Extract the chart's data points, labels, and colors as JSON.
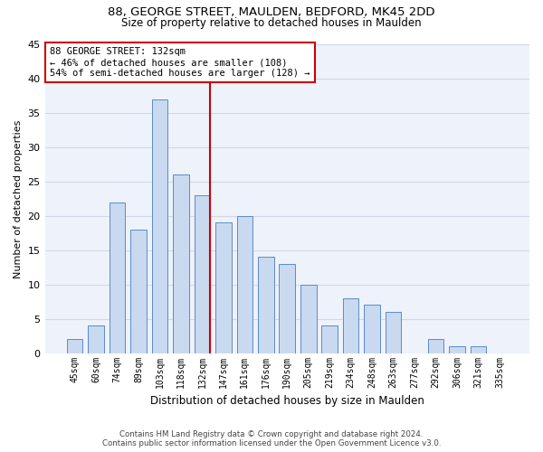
{
  "title_line1": "88, GEORGE STREET, MAULDEN, BEDFORD, MK45 2DD",
  "title_line2": "Size of property relative to detached houses in Maulden",
  "xlabel": "Distribution of detached houses by size in Maulden",
  "ylabel": "Number of detached properties",
  "categories": [
    "45sqm",
    "60sqm",
    "74sqm",
    "89sqm",
    "103sqm",
    "118sqm",
    "132sqm",
    "147sqm",
    "161sqm",
    "176sqm",
    "190sqm",
    "205sqm",
    "219sqm",
    "234sqm",
    "248sqm",
    "263sqm",
    "277sqm",
    "292sqm",
    "306sqm",
    "321sqm",
    "335sqm"
  ],
  "values": [
    2,
    4,
    22,
    18,
    37,
    26,
    23,
    19,
    20,
    14,
    13,
    10,
    4,
    8,
    7,
    6,
    0,
    2,
    1,
    1,
    0
  ],
  "bar_color": "#c9d9f0",
  "bar_edge_color": "#5b8cc8",
  "marker_index": 6,
  "marker_line_color": "#cc0000",
  "marker_box_color": "#cc0000",
  "annotation_line1": "88 GEORGE STREET: 132sqm",
  "annotation_line2": "← 46% of detached houses are smaller (108)",
  "annotation_line3": "54% of semi-detached houses are larger (128) →",
  "ylim": [
    0,
    45
  ],
  "yticks": [
    0,
    5,
    10,
    15,
    20,
    25,
    30,
    35,
    40,
    45
  ],
  "grid_color": "#d0d8e8",
  "bg_color": "#eef2fb",
  "footer_line1": "Contains HM Land Registry data © Crown copyright and database right 2024.",
  "footer_line2": "Contains public sector information licensed under the Open Government Licence v3.0.",
  "title_fontsize": 9.5,
  "subtitle_fontsize": 8.5,
  "bar_width": 0.75
}
